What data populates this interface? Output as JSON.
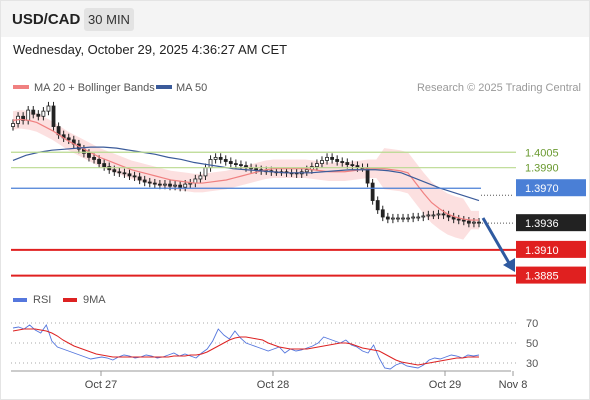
{
  "header": {
    "pair": "USD/CAD",
    "timeframe": "30 MIN",
    "datetime": "Wednesday, October 29, 2025 4:36:27 AM CET"
  },
  "legend": {
    "ma20_label": "MA 20 + Bollinger Bands",
    "ma50_label": "MA 50",
    "credit": "Research © 2025 Trading Central"
  },
  "rsi_legend": {
    "rsi_label": "RSI",
    "ma_label": "9MA"
  },
  "colors": {
    "ma20": "#f08080",
    "band_fill": "#fbd5d5",
    "ma50": "#3b5b9a",
    "resistance": "#b9d98f",
    "pivot": "#4a7fd6",
    "support": "#e02020",
    "current": "#222222",
    "arrow": "#2f5aa0",
    "rsi": "#5577dd",
    "rsi_ma": "#dd2222",
    "candle_up": "#ffffff",
    "candle_down": "#222222"
  },
  "chart_data": [
    {
      "type": "candlestick",
      "title": "USD/CAD 30 MIN",
      "ylim": [
        1.387,
        1.405
      ],
      "x_ticks": [
        "Oct 27",
        "Oct 28",
        "Oct 29",
        "Nov 8"
      ],
      "levels": [
        {
          "label": "1.4005",
          "value": 1.4005,
          "kind": "resistance"
        },
        {
          "label": "1.3990",
          "value": 1.399,
          "kind": "resistance"
        },
        {
          "label": "1.3970",
          "value": 1.397,
          "kind": "pivot"
        },
        {
          "label": "1.3936",
          "value": 1.3936,
          "kind": "current"
        },
        {
          "label": "1.3910",
          "value": 1.391,
          "kind": "support"
        },
        {
          "label": "1.3885",
          "value": 1.3885,
          "kind": "support"
        }
      ],
      "close": [
        1.4033,
        1.404,
        1.4036,
        1.4046,
        1.4042,
        1.404,
        1.4045,
        1.405,
        1.403,
        1.4022,
        1.4019,
        1.4017,
        1.4013,
        1.4008,
        1.4004,
        1.4,
        1.3998,
        1.3994,
        1.3991,
        1.3988,
        1.3986,
        1.3985,
        1.3984,
        1.3982,
        1.3981,
        1.3978,
        1.3976,
        1.3975,
        1.3974,
        1.3973,
        1.3974,
        1.3972,
        1.3973,
        1.3971,
        1.3974,
        1.3975,
        1.3979,
        1.3982,
        1.399,
        1.3998,
        1.4,
        1.3998,
        1.3996,
        1.3994,
        1.3993,
        1.3992,
        1.399,
        1.3989,
        1.3988,
        1.3987,
        1.3987,
        1.3986,
        1.3986,
        1.3986,
        1.3985,
        1.3985,
        1.3984,
        1.3986,
        1.3988,
        1.3991,
        1.3994,
        1.3997,
        1.4,
        1.3998,
        1.3996,
        1.3995,
        1.3993,
        1.3992,
        1.399,
        1.399,
        1.3975,
        1.3958,
        1.3949,
        1.3942,
        1.394,
        1.3941,
        1.3941,
        1.3941,
        1.3941,
        1.3942,
        1.3942,
        1.3943,
        1.3944,
        1.3944,
        1.3945,
        1.3944,
        1.3942,
        1.394,
        1.3939,
        1.3938,
        1.3936,
        1.3937,
        1.3936
      ],
      "ma20": [
        1.4036,
        1.4037,
        1.4036,
        1.4034,
        1.403,
        1.4026,
        1.4021,
        1.4016,
        1.4012,
        1.4008,
        1.4004,
        1.4,
        1.3997,
        1.3994,
        1.3991,
        1.3988,
        1.3986,
        1.3984,
        1.3982,
        1.398,
        1.3978,
        1.3977,
        1.3976,
        1.3975,
        1.3975,
        1.3976,
        1.3977,
        1.3978,
        1.398,
        1.3982,
        1.3984,
        1.3986,
        1.3988,
        1.3989,
        1.3989,
        1.3989,
        1.3989,
        1.3989,
        1.3988,
        1.3987,
        1.3986,
        1.3986,
        1.3986,
        1.3987,
        1.3988,
        1.3989,
        1.3989,
        1.3989,
        1.3988,
        1.3987,
        1.3985,
        1.3975,
        1.3965,
        1.3956,
        1.395,
        1.3945,
        1.3942,
        1.394,
        1.3939,
        1.3939
      ],
      "ma50": [
        1.3997,
        1.4002,
        1.4005,
        1.4007,
        1.4008,
        1.4009,
        1.401,
        1.401,
        1.4009,
        1.4007,
        1.4005,
        1.4003,
        1.4,
        1.3998,
        1.3995,
        1.3993,
        1.3991,
        1.3989,
        1.3988,
        1.3987,
        1.3986,
        1.3985,
        1.3985,
        1.3985,
        1.3986,
        1.3987,
        1.3988,
        1.3988,
        1.3988,
        1.3987,
        1.3985,
        1.398,
        1.3975,
        1.397,
        1.3966,
        1.3962,
        1.3958
      ]
    },
    {
      "type": "line",
      "title": "RSI",
      "ylim": [
        20,
        80
      ],
      "y_ticks": [
        70,
        50,
        30
      ],
      "series": [
        {
          "name": "RSI",
          "values": [
            65,
            66,
            64,
            68,
            63,
            60,
            68,
            52,
            46,
            44,
            42,
            40,
            38,
            36,
            34,
            35,
            36,
            35,
            33,
            36,
            38,
            37,
            35,
            36,
            38,
            37,
            35,
            36,
            38,
            40,
            37,
            39,
            37,
            35,
            40,
            44,
            52,
            64,
            58,
            54,
            62,
            55,
            50,
            48,
            46,
            44,
            42,
            44,
            46,
            40,
            44,
            42,
            43,
            45,
            47,
            50,
            56,
            54,
            52,
            50,
            53,
            48,
            46,
            42,
            40,
            48,
            35,
            25,
            24,
            28,
            30,
            27,
            26,
            25,
            28,
            33,
            35,
            34,
            36,
            38,
            37,
            35,
            38,
            37,
            38
          ]
        },
        {
          "name": "9MA",
          "values": [
            62,
            63,
            64,
            64,
            64,
            63,
            62,
            60,
            57,
            53,
            50,
            47,
            45,
            43,
            41,
            39,
            38,
            37,
            36,
            36,
            36,
            36,
            36,
            36,
            36,
            36,
            36,
            36,
            36,
            37,
            37,
            37,
            38,
            38,
            39,
            41,
            44,
            47,
            50,
            53,
            55,
            56,
            56,
            55,
            54,
            53,
            50,
            48,
            46,
            45,
            44,
            44,
            44,
            44,
            45,
            46,
            47,
            48,
            49,
            50,
            50,
            49,
            47,
            45,
            44,
            43,
            42,
            39,
            36,
            33,
            31,
            30,
            29,
            28,
            29,
            30,
            31,
            32,
            33,
            34,
            35,
            35,
            36,
            36,
            36
          ]
        }
      ]
    }
  ]
}
